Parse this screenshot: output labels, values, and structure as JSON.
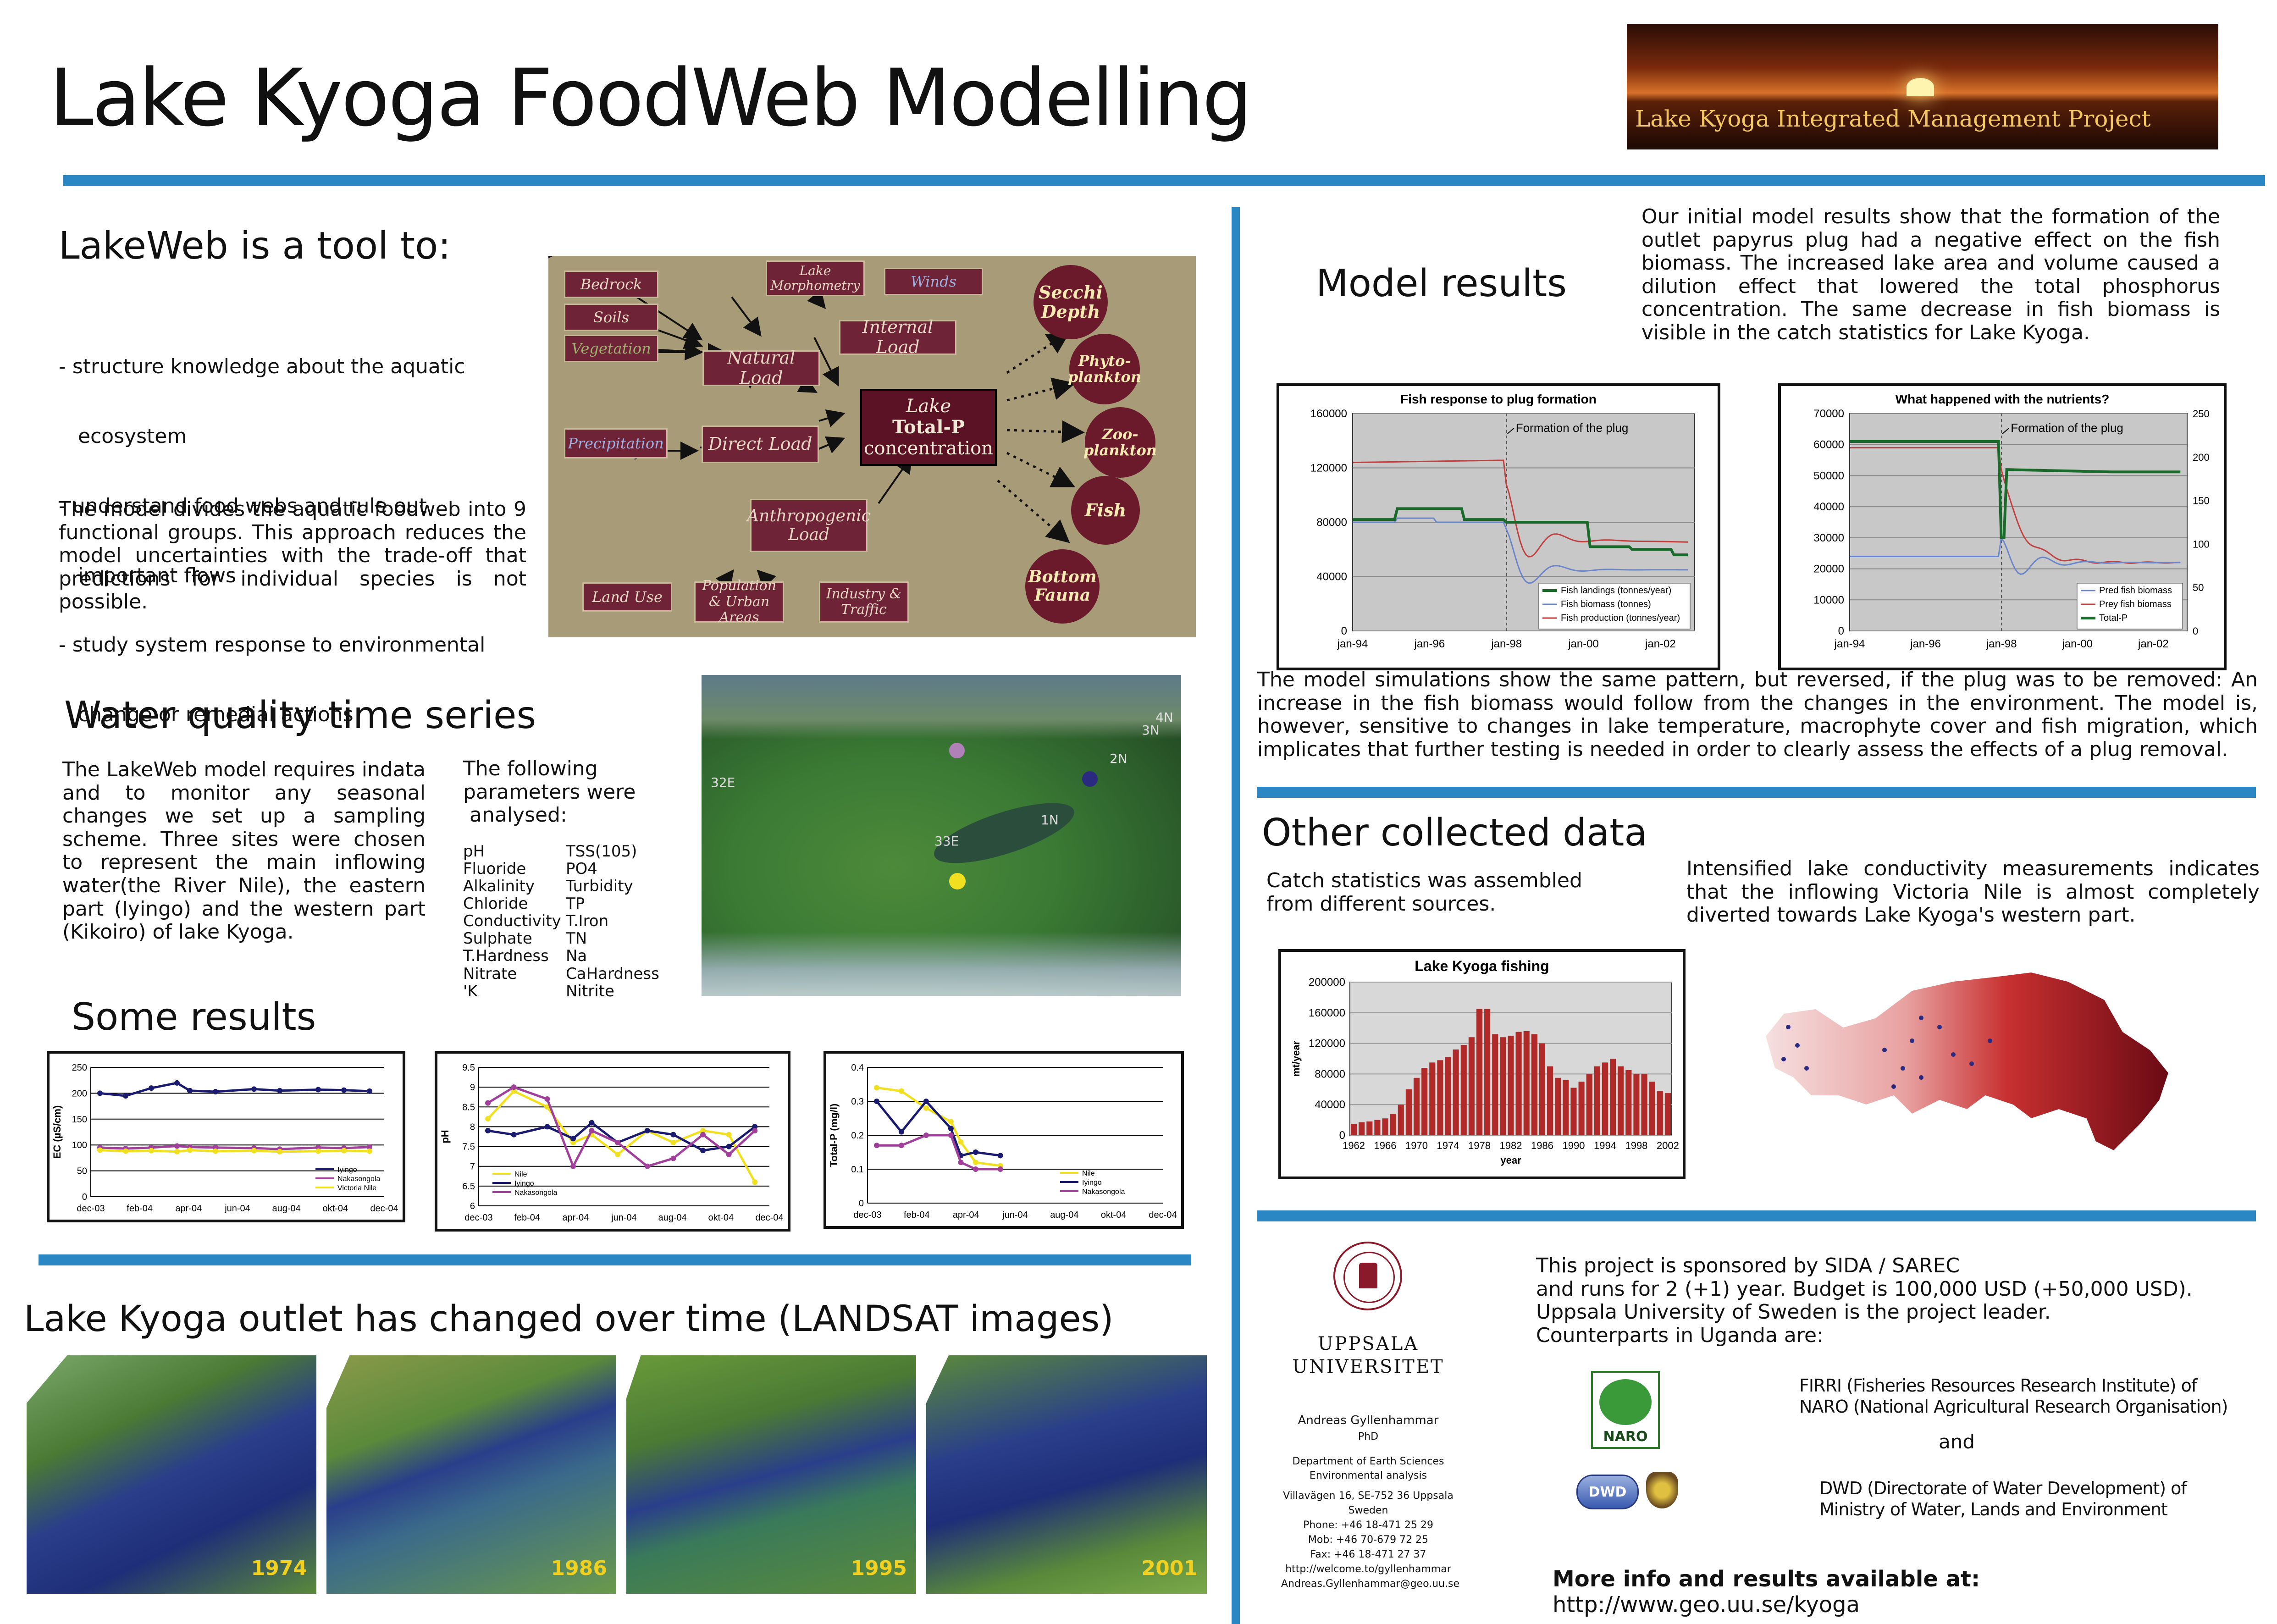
{
  "title": "Lake Kyoga FoodWeb Modelling",
  "logo_project": "Lake Kyoga Integrated Management Project",
  "lakeweb": {
    "heading": "LakeWeb is a tool to:",
    "bullets": [
      "- structure knowledge about the aquatic",
      "   ecosystem",
      "- understand food webs and rule out",
      "   important flows",
      "- study system response to environmental",
      "   change or remedial actions"
    ],
    "para": "The model divides the aquatic foodweb into 9 functional groups. This approach reduces the model uncertainties with the trade-off that predictions for individual species is not possible."
  },
  "diagram": {
    "bedrock": "Bedrock",
    "soils": "Soils",
    "vegetation": "Vegetation",
    "lake_morphometry": "Lake Morphometry",
    "winds": "Winds",
    "natural_load": "Natural Load",
    "internal_load": "Internal Load",
    "precipitation": "Precipitation",
    "direct_load": "Direct Load",
    "lake_tp_1": "Lake",
    "lake_tp_2": "Total-P",
    "lake_tp_3": "concentration",
    "anthropogenic_load": "Anthropogenic Load",
    "land_use": "Land Use",
    "population": "Population & Urban Areas",
    "industry": "Industry & Traffic",
    "secchi": "Secchi Depth",
    "phyto": "Phyto-plankton",
    "zoo": "Zoo-plankton",
    "fish": "Fish",
    "bottom": "Bottom Fauna"
  },
  "water_quality": {
    "heading": "Water quality time series",
    "para": "The LakeWeb model requires indata and to monitor any seasonal changes we set up a sampling scheme. Three sites were chosen to represent the main inflowing water(the River Nile), the eastern part (Iyingo) and the western part (Kikoiro) of lake Kyoga.",
    "params_intro_1": "The following",
    "params_intro_2": "parameters were",
    "params_intro_3": " analysed:",
    "params_left": [
      "pH",
      "Fluoride",
      "Alkalinity",
      "Chloride",
      "Conductivity",
      "Sulphate",
      "T.Hardness",
      "Nitrate",
      "'K"
    ],
    "params_right": [
      "TSS(105)",
      "PO4",
      "Turbidity",
      "TP",
      "T.Iron",
      "TN",
      "Na",
      "CaHardness",
      "Nitrite"
    ]
  },
  "map_labels": [
    "32E",
    "33E",
    "1N",
    "2N",
    "3N",
    "4N"
  ],
  "some_results": "Some results",
  "outlet_heading": "Lake Kyoga outlet has changed over time (LANDSAT images)",
  "landsat_years": [
    "1974",
    "1986",
    "1995",
    "2001"
  ],
  "model_results": {
    "heading": "Model results",
    "para": "Our initial model results show that the formation of the outlet papyrus plug had a negative effect on the fish biomass. The increased lake area and volume caused a dilution effect that lowered the total phosphorus concentration. The same decrease in fish biomass is visible in the catch statistics for Lake Kyoga.",
    "para2": "The model simulations show the same pattern, but reversed, if the plug was to be removed: An increase in the fish biomass would follow from the changes in the environment. The model is, however, sensitive to changes in lake temperature, macrophyte cover and fish migration, which implicates that further testing is needed in order to clearly assess the effects of a plug removal."
  },
  "other_data": {
    "heading": "Other collected data",
    "catch": "Catch statistics was assembled from different sources.",
    "conductivity": "Intensified lake conductivity measurements indicates that the inflowing Victoria Nile is almost completely diverted towards Lake Kyoga's western part."
  },
  "sponsor": {
    "l1": "This project is sponsored by SIDA / SAREC",
    "l2": "and runs for 2 (+1) year. Budget is 100,000 USD (+50,000 USD).",
    "l3": "Uppsala University of Sweden is the project leader.",
    "l4": "Counterparts in Uganda are:",
    "firri1": "FIRRI (Fisheries Resources Research Institute) of",
    "firri2": "NARO (National Agricultural Research Organisation)",
    "and": "and",
    "dwd1": "DWD (Directorate of Water Development) of",
    "dwd2": "Ministry of Water, Lands and Environment",
    "naro": "NARO",
    "dwd_badge": "DWD",
    "more_bold": "More info and results available at:",
    "more_url": "http://www.geo.uu.se/kyoga"
  },
  "uppsala": {
    "name1": "UPPSALA",
    "name2": "UNIVERSITET",
    "person": "Andreas Gyllenhammar",
    "degree": "PhD",
    "dept1": "Department of Earth Sciences",
    "dept2": "Environmental analysis",
    "addr1": "Villavägen 16, SE-752 36 Uppsala",
    "addr2": "Sweden",
    "phone": "Phone: +46 18-471 25 29",
    "mob": "Mob: +46  70-679 72 25",
    "fax": "Fax: +46 18-471 27 37",
    "web": "http://welcome.to/gyllenhammar",
    "email": "Andreas.Gyllenhammar@geo.uu.se"
  },
  "chart_data": [
    {
      "type": "line",
      "title": "",
      "ylabel": "EC (µS/cm)",
      "ylim": [
        0,
        250
      ],
      "yticks": [
        0,
        50,
        100,
        150,
        200,
        250
      ],
      "xticks": [
        "dec-03",
        "feb-04",
        "apr-04",
        "jun-04",
        "aug-04",
        "okt-04",
        "dec-04"
      ],
      "series": [
        {
          "name": "Iyingo",
          "color": "#1a1a6e",
          "values": [
            200,
            195,
            210,
            220,
            205,
            203,
            208,
            205,
            207,
            206,
            204
          ]
        },
        {
          "name": "Nakasongola",
          "color": "#a0409a",
          "values": [
            95,
            93,
            95,
            98,
            96,
            95,
            94,
            92,
            95,
            94,
            96
          ]
        },
        {
          "name": "Victoria Nile",
          "color": "#f0e020",
          "values": [
            90,
            88,
            89,
            87,
            90,
            88,
            89,
            87,
            88,
            89,
            88
          ]
        }
      ],
      "x_positions": [
        0,
        1,
        2,
        3,
        3.5,
        4.5,
        6,
        7,
        8.5,
        9.5,
        10.5
      ]
    },
    {
      "type": "line",
      "title": "",
      "ylabel": "pH",
      "ylim": [
        6,
        9.5
      ],
      "yticks": [
        6,
        6.5,
        7,
        7.5,
        8,
        8.5,
        9,
        9.5
      ],
      "xticks": [
        "dec-03",
        "feb-04",
        "apr-04",
        "jun-04",
        "aug-04",
        "okt-04",
        "dec-04"
      ],
      "series": [
        {
          "name": "Nile",
          "color": "#f0e020",
          "values": [
            8.2,
            8.9,
            8.5,
            7.6,
            7.8,
            7.3,
            7.9,
            7.6,
            7.9,
            7.8,
            6.6
          ]
        },
        {
          "name": "Iyingo",
          "color": "#1a1a6e",
          "values": [
            7.9,
            7.8,
            8.0,
            7.7,
            8.1,
            7.6,
            7.9,
            7.8,
            7.4,
            7.5,
            8.0
          ]
        },
        {
          "name": "Nakasongola",
          "color": "#a0409a",
          "values": [
            8.6,
            9.0,
            8.7,
            7.0,
            7.9,
            7.6,
            7.0,
            7.2,
            7.8,
            7.3,
            7.9
          ]
        }
      ],
      "x_positions": [
        0,
        0.7,
        1.6,
        2.3,
        2.8,
        3.5,
        4.3,
        5.0,
        5.8,
        6.5,
        7.2
      ]
    },
    {
      "type": "line",
      "title": "",
      "ylabel": "Total-P (mg/l)",
      "ylim": [
        0,
        0.4
      ],
      "yticks": [
        0,
        0.1,
        0.2,
        0.3,
        0.4
      ],
      "xticks": [
        "dec-03",
        "feb-04",
        "apr-04",
        "jun-04",
        "aug-04",
        "okt-04",
        "dec-04"
      ],
      "series": [
        {
          "name": "Nile",
          "color": "#f0e020",
          "values": [
            0.34,
            0.33,
            0.28,
            0.24,
            0.18,
            0.12,
            0.11
          ]
        },
        {
          "name": "Iyingo",
          "color": "#1a1a6e",
          "values": [
            0.3,
            0.21,
            0.3,
            0.22,
            0.14,
            0.15,
            0.14
          ]
        },
        {
          "name": "Nakasongola",
          "color": "#a0409a",
          "values": [
            0.17,
            0.17,
            0.2,
            0.2,
            0.12,
            0.1,
            0.1
          ]
        }
      ],
      "x_positions": [
        0,
        0.5,
        1.0,
        1.5,
        1.7,
        2.0,
        2.5
      ]
    },
    {
      "type": "line",
      "title": "Fish response to plug formation",
      "annotation": "Formation of the plug",
      "ylim": [
        0,
        160000
      ],
      "yticks": [
        0,
        40000,
        80000,
        120000,
        160000
      ],
      "xticks": [
        "jan-94",
        "jan-96",
        "jan-98",
        "jan-00",
        "jan-02"
      ],
      "series": [
        {
          "name": "Fish landings (tonnes/year)",
          "color": "#1a6b2a"
        },
        {
          "name": "Fish biomass (tonnes)",
          "color": "#6a86c8"
        },
        {
          "name": "Fish production (tonnes/year)",
          "color": "#c04040"
        }
      ]
    },
    {
      "type": "line",
      "title": "What happened with the nutrients?",
      "annotation": "Formation of the plug",
      "ylim": [
        0,
        70000
      ],
      "yticks": [
        0,
        10000,
        20000,
        30000,
        40000,
        50000,
        60000,
        70000
      ],
      "y2ticks": [
        0,
        50,
        100,
        150,
        200,
        250
      ],
      "xticks": [
        "jan-94",
        "jan-96",
        "jan-98",
        "jan-00",
        "jan-02"
      ],
      "series": [
        {
          "name": "Pred fish biomass",
          "color": "#6a86c8"
        },
        {
          "name": "Prey fish biomass",
          "color": "#c04040"
        },
        {
          "name": "Total-P",
          "color": "#1a6b2a"
        }
      ]
    },
    {
      "type": "bar",
      "title": "Lake Kyoga fishing",
      "ylabel": "mt/year",
      "xlabel": "year",
      "ylim": [
        0,
        200000
      ],
      "yticks": [
        0,
        40000,
        80000,
        120000,
        160000,
        200000
      ],
      "xticks": [
        "1962",
        "1966",
        "1970",
        "1974",
        "1978",
        "1982",
        "1986",
        "1990",
        "1994",
        "1998",
        "2002"
      ],
      "categories": [
        "1962",
        "1963",
        "1964",
        "1965",
        "1966",
        "1967",
        "1968",
        "1969",
        "1970",
        "1971",
        "1972",
        "1973",
        "1974",
        "1975",
        "1976",
        "1977",
        "1978",
        "1979",
        "1980",
        "1981",
        "1982",
        "1983",
        "1984",
        "1985",
        "1986",
        "1987",
        "1988",
        "1989",
        "1990",
        "1991",
        "1992",
        "1993",
        "1994",
        "1995",
        "1996",
        "1997",
        "1998",
        "1999",
        "2000",
        "2001",
        "2002"
      ],
      "values": [
        15000,
        17000,
        18000,
        20000,
        22000,
        28000,
        40000,
        60000,
        75000,
        88000,
        95000,
        98000,
        102000,
        112000,
        118000,
        128000,
        165000,
        165000,
        132000,
        128000,
        130000,
        135000,
        136000,
        132000,
        120000,
        90000,
        75000,
        72000,
        62000,
        70000,
        80000,
        90000,
        95000,
        100000,
        90000,
        85000,
        80000,
        80000,
        70000,
        58000,
        55000
      ]
    }
  ]
}
